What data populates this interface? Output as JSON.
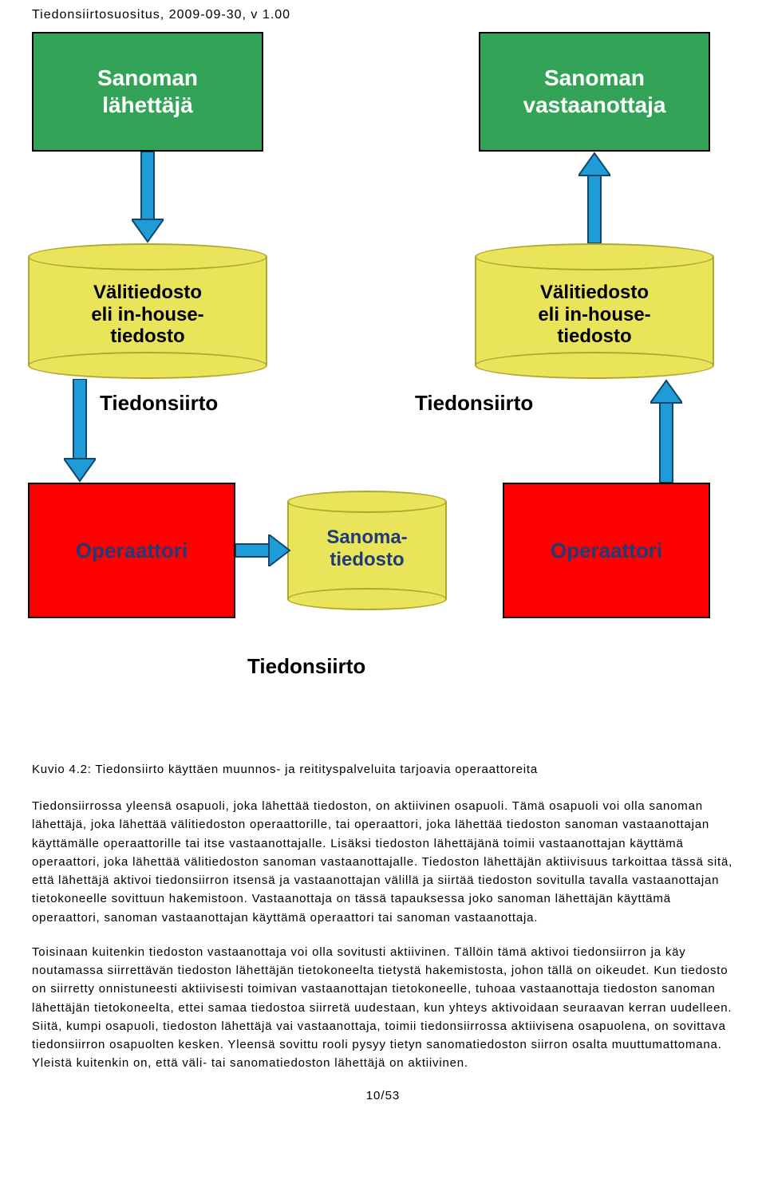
{
  "header": "Tiedonsiirtosuositus, 2009-09-30, v 1.00",
  "diagram": {
    "nodes": {
      "sender": {
        "label": "Sanoman\nlähettäjä",
        "bg": "#33a457",
        "text": "#ffffff"
      },
      "receiver": {
        "label": "Sanoman\nvastaanottaja",
        "bg": "#33a457",
        "text": "#ffffff"
      },
      "cyl_left": {
        "label": "Välitiedosto\neli in-house-\ntiedosto"
      },
      "cyl_right": {
        "label": "Välitiedosto\neli in-house-\ntiedosto"
      },
      "op_left": {
        "label": "Operaattori",
        "bg": "#ff0000",
        "text": "#1f3b78"
      },
      "op_right": {
        "label": "Operaattori",
        "bg": "#ff0000",
        "text": "#1f3b78"
      },
      "cyl_mid": {
        "label": "Sanoma-\ntiedosto"
      }
    },
    "labels": {
      "ts_left": "Tiedonsiirto",
      "ts_right": "Tiedonsiirto",
      "ts_bottom": "Tiedonsiirto"
    },
    "arrow_color": "#1f9bd8",
    "arrow_border": "#0f486b"
  },
  "caption": "Kuvio 4.2: Tiedonsiirto käyttäen muunnos- ja reitityspalveluita tarjoavia operaattoreita",
  "paragraphs": [
    "Tiedonsiirrossa yleensä osapuoli, joka lähettää tiedoston, on aktiivinen osapuoli. Tämä osapuoli voi olla sanoman lähettäjä, joka lähettää välitiedoston operaattorille, tai operaattori, joka lähettää tiedoston sanoman vastaanottajan käyttämälle operaattorille tai itse vastaanottajalle. Lisäksi tiedoston lähettäjänä toimii vastaanottajan käyttämä operaattori, joka lähettää välitiedoston sanoman vastaanottajalle. Tiedoston lähettäjän aktiivisuus tarkoittaa tässä sitä, että lähettäjä aktivoi tiedonsiirron itsensä ja vastaanottajan välillä ja siirtää tiedoston sovitulla tavalla vastaanottajan tietokoneelle sovittuun hakemistoon. Vastaanottaja on tässä tapauksessa joko sanoman lähettäjän käyttämä operaattori, sanoman vastaanottajan käyttämä operaattori tai sanoman vastaanottaja.",
    "Toisinaan kuitenkin tiedoston vastaanottaja voi olla sovitusti aktiivinen. Tällöin tämä aktivoi tiedonsiirron ja käy noutamassa siirrettävän tiedoston lähettäjän tietokoneelta tietystä hakemistosta, johon tällä on oikeudet. Kun tiedosto on siirretty onnistuneesti aktiivisesti toimivan vastaanottajan tietokoneelle, tuhoaa vastaanottaja tiedoston sanoman lähettäjän tietokoneelta, ettei samaa tiedostoa siirretä uudestaan, kun yhteys aktivoidaan seuraavan kerran uudelleen. Siitä, kumpi osapuoli, tiedoston lähettäjä vai vastaanottaja, toimii tiedonsiirrossa aktiivisena osapuolena, on sovittava tiedonsiirron osapuolten kesken. Yleensä sovittu rooli pysyy tietyn sanomatiedoston siirron osalta muuttumattomana. Yleistä kuitenkin on, että väli- tai sanomatiedoston lähettäjä on aktiivinen."
  ],
  "page": "10/53"
}
